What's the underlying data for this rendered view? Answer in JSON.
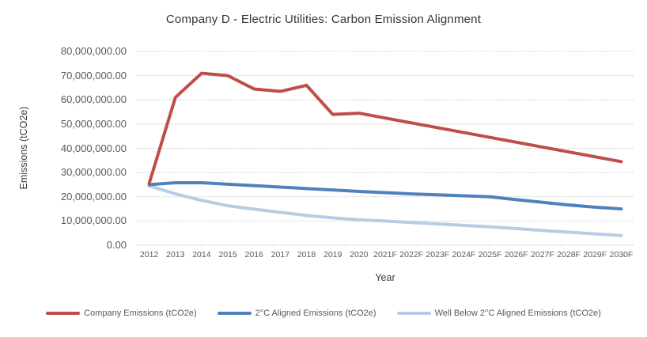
{
  "chart_data": {
    "type": "line",
    "title": "Company D - Electric Utilities: Carbon Emission Alignment",
    "xlabel": "Year",
    "ylabel": "Emissions (tCO2e)",
    "ylim": [
      0,
      80000000
    ],
    "ytick_interval": 10000000,
    "ytick_labels": [
      "0.00",
      "10,000,000.00",
      "20,000,000.00",
      "30,000,000.00",
      "40,000,000.00",
      "50,000,000.00",
      "60,000,000.00",
      "70,000,000.00",
      "80,000,000.00"
    ],
    "grid": "horizontal",
    "legend_position": "bottom",
    "categories": [
      "2012",
      "2013",
      "2014",
      "2015",
      "2016",
      "2017",
      "2018",
      "2019",
      "2020",
      "2021F",
      "2022F",
      "2023F",
      "2024F",
      "2025F",
      "2026F",
      "2027F",
      "2028F",
      "2029F",
      "2030F"
    ],
    "series": [
      {
        "name": "Company Emissions (tCO2e)",
        "color": "#BF4E4B",
        "values": [
          25500000,
          61000000,
          71000000,
          70000000,
          64500000,
          63500000,
          66000000,
          54000000,
          54500000,
          52500000,
          50500000,
          48500000,
          46500000,
          44500000,
          42500000,
          40500000,
          38500000,
          36500000,
          34500000
        ]
      },
      {
        "name": "2°C Aligned Emissions (tCO2e)",
        "color": "#4F81BD",
        "values": [
          25000000,
          25800000,
          25800000,
          25200000,
          24600000,
          24000000,
          23400000,
          22800000,
          22200000,
          21700000,
          21200000,
          20800000,
          20400000,
          20000000,
          18800000,
          17700000,
          16600000,
          15700000,
          15000000
        ]
      },
      {
        "name": "Well Below 2°C Aligned Emissions (tCO2e)",
        "color": "#B8CCE4",
        "values": [
          24500000,
          21200000,
          18500000,
          16300000,
          14900000,
          13600000,
          12300000,
          11300000,
          10500000,
          10000000,
          9400000,
          8800000,
          8200000,
          7600000,
          6900000,
          6100000,
          5400000,
          4700000,
          4000000
        ]
      }
    ]
  },
  "colors": {
    "gridline": "#D3D3D3",
    "axis_line": "#C6C6C6",
    "tick_text": "#595959",
    "title_text": "#333333"
  }
}
